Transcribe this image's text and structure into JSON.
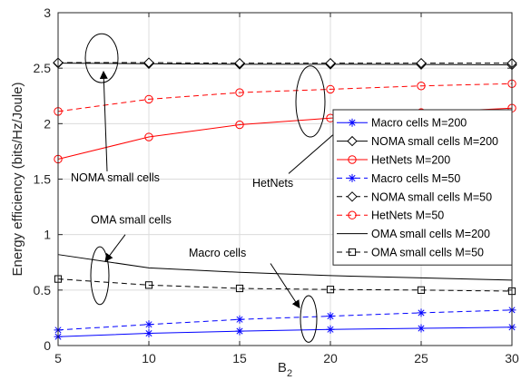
{
  "chart_data": {
    "type": "line",
    "xlabel": "B",
    "xlabel_sub": "2",
    "ylabel": "Energy efficiency (bits/Hz/Joule)",
    "xlim": [
      5,
      30
    ],
    "ylim": [
      0,
      3
    ],
    "xticks": [
      "5",
      "10",
      "15",
      "20",
      "25",
      "30"
    ],
    "yticks": [
      "0",
      "0.5",
      "1",
      "1.5",
      "2",
      "2.5",
      "3"
    ],
    "xticks_values": [
      5,
      10,
      15,
      20,
      25,
      30
    ],
    "yticks_values": [
      0,
      0.5,
      1,
      1.5,
      2,
      2.5,
      3
    ],
    "grid": true,
    "legend_position": "right",
    "x": [
      5,
      10,
      15,
      20,
      25,
      30
    ],
    "series": [
      {
        "name": "Macro cells M=200",
        "color": "#0000ff",
        "dash": "solid",
        "marker": "asterisk",
        "values": [
          0.08,
          0.11,
          0.13,
          0.145,
          0.155,
          0.165
        ]
      },
      {
        "name": "NOMA small cells M=200",
        "color": "#000000",
        "dash": "solid",
        "marker": "diamond",
        "values": [
          2.545,
          2.54,
          2.535,
          2.535,
          2.533,
          2.53
        ]
      },
      {
        "name": "HetNets M=200",
        "color": "#ff0000",
        "dash": "solid",
        "marker": "circle",
        "values": [
          1.68,
          1.88,
          1.99,
          2.05,
          2.1,
          2.14
        ]
      },
      {
        "name": "Macro cells M=50",
        "color": "#0000ff",
        "dash": "dashed",
        "marker": "asterisk",
        "values": [
          0.14,
          0.19,
          0.235,
          0.265,
          0.295,
          0.32
        ]
      },
      {
        "name": "NOMA small cells M=50",
        "color": "#000000",
        "dash": "dashed",
        "marker": "diamond",
        "values": [
          2.55,
          2.55,
          2.545,
          2.545,
          2.545,
          2.545
        ]
      },
      {
        "name": "HetNets M=50",
        "color": "#ff0000",
        "dash": "dashed",
        "marker": "circle",
        "values": [
          2.11,
          2.22,
          2.28,
          2.31,
          2.34,
          2.36
        ]
      },
      {
        "name": "OMA small cells M=200",
        "color": "#000000",
        "dash": "solid",
        "marker": "none",
        "values": [
          0.82,
          0.7,
          0.66,
          0.63,
          0.61,
          0.59
        ]
      },
      {
        "name": "OMA small cells M=50",
        "color": "#000000",
        "dash": "dashed",
        "marker": "square",
        "values": [
          0.6,
          0.545,
          0.515,
          0.505,
          0.5,
          0.49
        ]
      }
    ],
    "annotations": [
      {
        "text": "NOMA small cells",
        "ellipse": {
          "x": 7.4,
          "y": 2.59,
          "rx_units": 0.9,
          "ry_units": 0.22
        },
        "label": {
          "x": 5.7,
          "y": 1.48
        },
        "arrow_from": {
          "x": 7.7,
          "y": 1.57
        },
        "arrow_to": {
          "x": 7.5,
          "y": 2.47
        }
      },
      {
        "text": "HetNets",
        "ellipse": {
          "x": 18.9,
          "y": 2.2,
          "rx_units": 0.8,
          "ry_units": 0.32
        },
        "label": {
          "x": 15.7,
          "y": 1.43
        },
        "arrow_from": {
          "x": 17.7,
          "y": 1.55
        },
        "arrow_to": {
          "x": 21.2,
          "y": 2.05
        }
      },
      {
        "text": "OMA small cells",
        "ellipse": {
          "x": 7.3,
          "y": 0.63,
          "rx_units": 0.5,
          "ry_units": 0.26
        },
        "label": {
          "x": 6.8,
          "y": 1.1
        },
        "arrow_from": {
          "x": 8.7,
          "y": 1.0
        },
        "arrow_to": {
          "x": 7.6,
          "y": 0.76
        }
      },
      {
        "text": "Macro cells",
        "ellipse": {
          "x": 18.8,
          "y": 0.24,
          "rx_units": 0.45,
          "ry_units": 0.21
        },
        "label": {
          "x": 12.2,
          "y": 0.8
        },
        "arrow_from": {
          "x": 16.7,
          "y": 0.74
        },
        "arrow_to": {
          "x": 18.3,
          "y": 0.34
        }
      }
    ]
  }
}
